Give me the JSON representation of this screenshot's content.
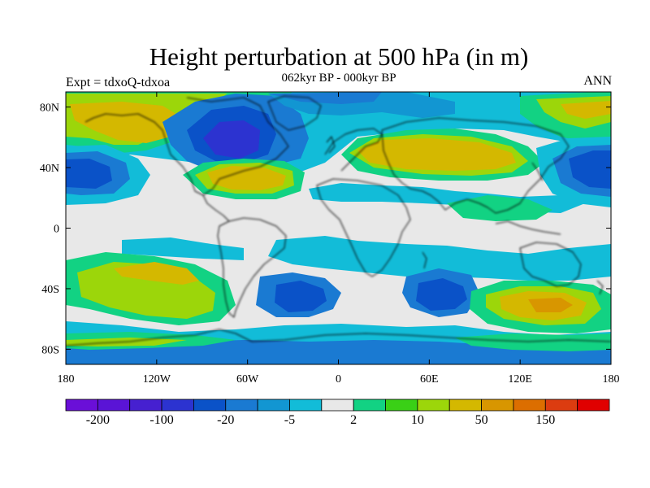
{
  "title": "Height perturbation at 500 hPa (in m)",
  "subtitle": "062kyr BP - 000kyr BP",
  "left_string": "Expt = tdxoQ-tdxoa",
  "right_string": "ANN",
  "map": {
    "lat_labels": [
      "80N",
      "40N",
      "0",
      "40S",
      "80S"
    ],
    "lat_values": [
      80,
      40,
      0,
      -40,
      -80
    ],
    "lon_labels": [
      "180",
      "120W",
      "60W",
      "0",
      "60E",
      "120E",
      "180"
    ],
    "lon_values": [
      -180,
      -120,
      -60,
      0,
      60,
      120,
      180
    ],
    "background_color": "#e8e8e8",
    "coastline_color": "#000000"
  },
  "colorbar": {
    "colors": [
      "#6a0fd8",
      "#5a14d6",
      "#4620d0",
      "#2c33d0",
      "#0a52c8",
      "#1a7ad2",
      "#1296d2",
      "#12bcd8",
      "#e8e8e8",
      "#12d283",
      "#3ad016",
      "#9cd60a",
      "#d4b800",
      "#d89600",
      "#dc6e00",
      "#dc3c10",
      "#e00000"
    ],
    "labels": [
      "-200",
      "-100",
      "-20",
      "-5",
      "2",
      "10",
      "50",
      "150"
    ]
  }
}
